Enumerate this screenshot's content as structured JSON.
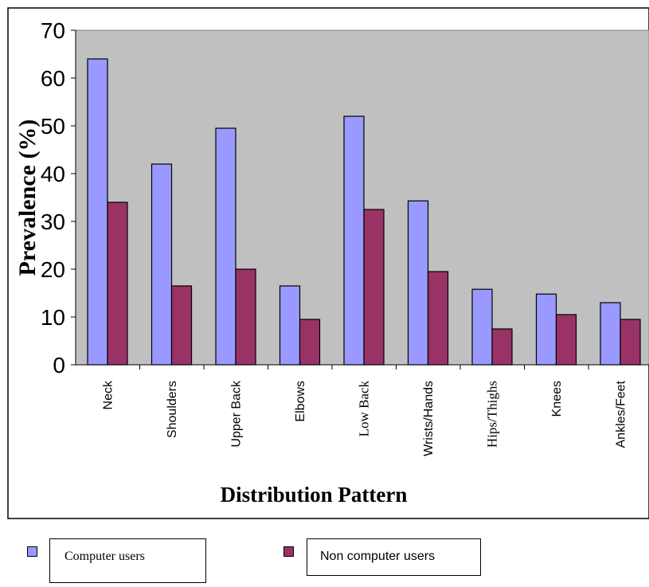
{
  "chart_data": {
    "type": "bar",
    "categories": [
      "Neck",
      "Shoulders",
      "Upper Back",
      "Elbows",
      "Low Back",
      "Wrists/Hands",
      "Hips/Thighs",
      "Knees",
      "Ankles/Feet"
    ],
    "series": [
      {
        "name": "Computer users",
        "color": "#9999ff",
        "values": [
          64,
          42,
          49.5,
          16.5,
          52,
          34.3,
          15.8,
          14.8,
          13
        ]
      },
      {
        "name": "Non computer users",
        "color": "#993366",
        "values": [
          34,
          16.5,
          20,
          9.5,
          32.5,
          19.5,
          7.5,
          10.5,
          9.5
        ]
      }
    ],
    "xlabel": "Distribution Pattern",
    "ylabel": "Prevalence (%)",
    "ylim": [
      0,
      70
    ],
    "yticks": [
      "0",
      "10",
      "20",
      "30",
      "40",
      "50",
      "60",
      "70"
    ],
    "plot_background": "#c0c0c0",
    "grid": false,
    "legend_position": "bottom"
  }
}
